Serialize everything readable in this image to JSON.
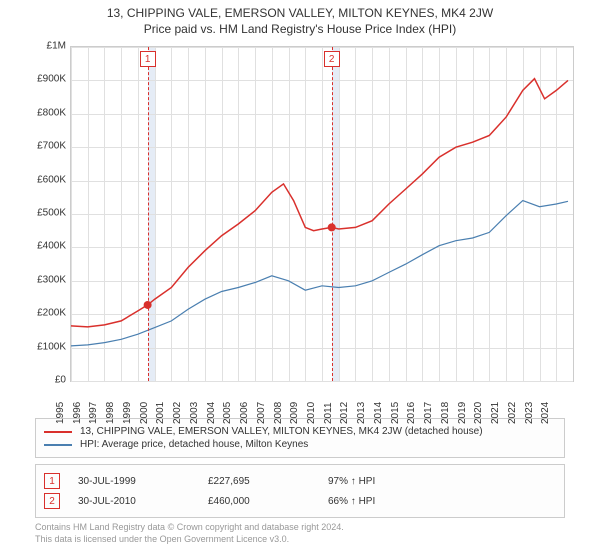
{
  "title_main": "13, CHIPPING VALE, EMERSON VALLEY, MILTON KEYNES, MK4 2JW",
  "title_sub": "Price paid vs. HM Land Registry's House Price Index (HPI)",
  "chart": {
    "type": "line",
    "x_range": [
      1995,
      2025
    ],
    "y_range": [
      0,
      1000000
    ],
    "y_ticks": [
      0,
      100000,
      200000,
      300000,
      400000,
      500000,
      600000,
      700000,
      800000,
      900000,
      1000000
    ],
    "y_tick_labels": [
      "£0",
      "£100K",
      "£200K",
      "£300K",
      "£400K",
      "£500K",
      "£600K",
      "£700K",
      "£800K",
      "£900K",
      "£1M"
    ],
    "x_ticks": [
      1995,
      1996,
      1997,
      1998,
      1999,
      2000,
      2001,
      2002,
      2003,
      2004,
      2005,
      2006,
      2007,
      2008,
      2009,
      2010,
      2011,
      2012,
      2013,
      2014,
      2015,
      2016,
      2017,
      2018,
      2019,
      2020,
      2021,
      2022,
      2023,
      2024
    ],
    "grid_color": "#e0e0e0",
    "border_color": "#cccccc",
    "background_color": "#ffffff",
    "highlight_bands": [
      {
        "from": 1999.58,
        "to": 2000.0,
        "color": "rgba(180,200,230,0.35)"
      },
      {
        "from": 2010.58,
        "to": 2011.0,
        "color": "rgba(180,200,230,0.35)"
      }
    ],
    "events": [
      {
        "label": "1",
        "x": 1999.58,
        "dot_y": 227695
      },
      {
        "label": "2",
        "x": 2010.58,
        "dot_y": 460000
      }
    ],
    "series": [
      {
        "name": "property_price",
        "color": "#d9302c",
        "width": 1.5,
        "data": [
          [
            1995.0,
            165000
          ],
          [
            1996.0,
            162000
          ],
          [
            1997.0,
            168000
          ],
          [
            1998.0,
            180000
          ],
          [
            1999.0,
            210000
          ],
          [
            1999.58,
            227695
          ],
          [
            2000.0,
            245000
          ],
          [
            2001.0,
            280000
          ],
          [
            2002.0,
            340000
          ],
          [
            2003.0,
            390000
          ],
          [
            2004.0,
            435000
          ],
          [
            2005.0,
            470000
          ],
          [
            2006.0,
            510000
          ],
          [
            2007.0,
            565000
          ],
          [
            2007.7,
            590000
          ],
          [
            2008.3,
            540000
          ],
          [
            2009.0,
            460000
          ],
          [
            2009.5,
            450000
          ],
          [
            2010.0,
            455000
          ],
          [
            2010.58,
            460000
          ],
          [
            2011.0,
            455000
          ],
          [
            2012.0,
            460000
          ],
          [
            2013.0,
            480000
          ],
          [
            2014.0,
            530000
          ],
          [
            2015.0,
            575000
          ],
          [
            2016.0,
            620000
          ],
          [
            2017.0,
            670000
          ],
          [
            2018.0,
            700000
          ],
          [
            2019.0,
            715000
          ],
          [
            2020.0,
            735000
          ],
          [
            2021.0,
            790000
          ],
          [
            2022.0,
            870000
          ],
          [
            2022.7,
            905000
          ],
          [
            2023.3,
            845000
          ],
          [
            2024.0,
            870000
          ],
          [
            2024.7,
            900000
          ]
        ]
      },
      {
        "name": "hpi_detached",
        "color": "#4a7fb0",
        "width": 1.2,
        "data": [
          [
            1995.0,
            105000
          ],
          [
            1996.0,
            108000
          ],
          [
            1997.0,
            115000
          ],
          [
            1998.0,
            125000
          ],
          [
            1999.0,
            140000
          ],
          [
            2000.0,
            160000
          ],
          [
            2001.0,
            180000
          ],
          [
            2002.0,
            215000
          ],
          [
            2003.0,
            245000
          ],
          [
            2004.0,
            268000
          ],
          [
            2005.0,
            280000
          ],
          [
            2006.0,
            295000
          ],
          [
            2007.0,
            315000
          ],
          [
            2008.0,
            300000
          ],
          [
            2009.0,
            272000
          ],
          [
            2010.0,
            285000
          ],
          [
            2011.0,
            280000
          ],
          [
            2012.0,
            285000
          ],
          [
            2013.0,
            300000
          ],
          [
            2014.0,
            325000
          ],
          [
            2015.0,
            350000
          ],
          [
            2016.0,
            378000
          ],
          [
            2017.0,
            405000
          ],
          [
            2018.0,
            420000
          ],
          [
            2019.0,
            428000
          ],
          [
            2020.0,
            445000
          ],
          [
            2021.0,
            495000
          ],
          [
            2022.0,
            540000
          ],
          [
            2023.0,
            522000
          ],
          [
            2024.0,
            530000
          ],
          [
            2024.7,
            538000
          ]
        ]
      }
    ]
  },
  "legend": {
    "series1": {
      "label": "13, CHIPPING VALE, EMERSON VALLEY, MILTON KEYNES, MK4 2JW (detached house)",
      "color": "#d9302c"
    },
    "series2": {
      "label": "HPI: Average price, detached house, Milton Keynes",
      "color": "#4a7fb0"
    }
  },
  "sales": [
    {
      "num": "1",
      "date": "30-JUL-1999",
      "price": "£227,695",
      "hpi": "97% ↑ HPI"
    },
    {
      "num": "2",
      "date": "30-JUL-2010",
      "price": "£460,000",
      "hpi": "66% ↑ HPI"
    }
  ],
  "attribution_line1": "Contains HM Land Registry data © Crown copyright and database right 2024.",
  "attribution_line2": "This data is licensed under the Open Government Licence v3.0."
}
